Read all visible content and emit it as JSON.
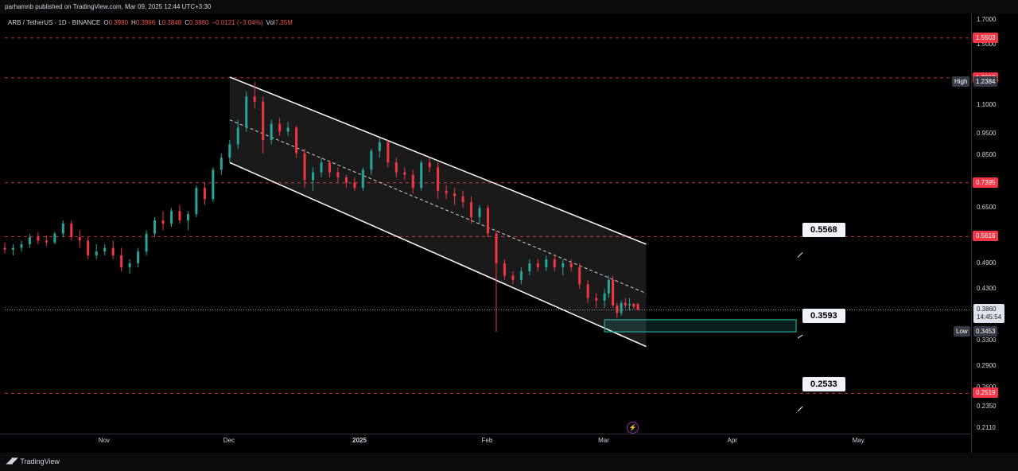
{
  "header": {
    "publisher": "parhamnb published on TradingView.com, Mar 09, 2025 12:44 UTC+3:30",
    "symbol": "ARB / TetherUS · 1D · BINANCE",
    "open_label": "O",
    "open": "0.3980",
    "high_label": "H",
    "high": "0.3996",
    "low_label": "L",
    "low": "0.3848",
    "close_label": "C",
    "close": "0.3860",
    "change": "−0.0121 (−3.04%)",
    "vol_label": "Vol",
    "vol": "7.35M"
  },
  "colors": {
    "up": "#26a69a",
    "down": "#f23645",
    "level_line": "#f23645",
    "channel": "#ffffff",
    "zone": "#26a69a"
  },
  "footer": {
    "brand": "TradingView",
    "logo_icon": "tradingview-logo-icon",
    "event_icon": "lightning-icon"
  },
  "chart_data": {
    "type": "candlestick",
    "scale": "log",
    "ylim": [
      0.205,
      1.75
    ],
    "y_ticks": [
      "1.7000",
      "1.5000",
      "1.2384",
      "1.1000",
      "0.9500",
      "0.8500",
      "0.6500",
      "0.4900",
      "0.4300",
      "0.3300",
      "0.2900",
      "0.2600",
      "0.2350",
      "0.2110"
    ],
    "x_ticks": [
      "Nov",
      "Dec",
      "2025",
      "Feb",
      "Mar",
      "Apr",
      "May"
    ],
    "x_tick_dates": [
      "2024-11-01",
      "2024-12-01",
      "2025-01-01",
      "2025-02-01",
      "2025-03-01",
      "2025-04-01",
      "2025-05-01"
    ],
    "xlim": [
      "2024-10-08",
      "2025-05-28"
    ],
    "levels": [
      {
        "value": 1.5503,
        "label": "1.5503"
      },
      {
        "value": 1.2653,
        "label": "1.2653"
      },
      {
        "value": 0.7395,
        "label": "0.7395"
      },
      {
        "value": 0.5616,
        "label": "0.5616"
      },
      {
        "value": 0.2519,
        "label": "0.2519"
      }
    ],
    "high_marker": {
      "label": "High",
      "value": "1.2384"
    },
    "low_marker": {
      "label": "Low",
      "value": "0.3453"
    },
    "last_price": {
      "value": "0.3860",
      "countdown": "14:45:54"
    },
    "callouts": [
      {
        "label": "0.5568",
        "value": 0.5568
      },
      {
        "label": "0.3593",
        "value": 0.3593
      },
      {
        "label": "0.2533",
        "value": 0.2533
      }
    ],
    "channel": {
      "start": "2024-12-01",
      "end": "2025-03-11",
      "upper": [
        1.27,
        0.54
      ],
      "mid": [
        1.02,
        0.42
      ],
      "lower": [
        0.82,
        0.32
      ]
    },
    "zone": {
      "start": "2025-03-01",
      "end": "2025-04-16",
      "top": 0.367,
      "bottom": 0.345
    },
    "candles": [
      {
        "d": "2024-10-08",
        "o": 0.53,
        "h": 0.545,
        "l": 0.515,
        "c": 0.525
      },
      {
        "d": "2024-10-10",
        "o": 0.525,
        "h": 0.54,
        "l": 0.51,
        "c": 0.53
      },
      {
        "d": "2024-10-12",
        "o": 0.53,
        "h": 0.55,
        "l": 0.52,
        "c": 0.54
      },
      {
        "d": "2024-10-14",
        "o": 0.54,
        "h": 0.57,
        "l": 0.53,
        "c": 0.56
      },
      {
        "d": "2024-10-16",
        "o": 0.56,
        "h": 0.575,
        "l": 0.54,
        "c": 0.55
      },
      {
        "d": "2024-10-18",
        "o": 0.55,
        "h": 0.565,
        "l": 0.535,
        "c": 0.545
      },
      {
        "d": "2024-10-20",
        "o": 0.545,
        "h": 0.575,
        "l": 0.54,
        "c": 0.57
      },
      {
        "d": "2024-10-22",
        "o": 0.57,
        "h": 0.61,
        "l": 0.56,
        "c": 0.6
      },
      {
        "d": "2024-10-24",
        "o": 0.6,
        "h": 0.61,
        "l": 0.55,
        "c": 0.56
      },
      {
        "d": "2024-10-26",
        "o": 0.56,
        "h": 0.58,
        "l": 0.53,
        "c": 0.55
      },
      {
        "d": "2024-10-28",
        "o": 0.55,
        "h": 0.56,
        "l": 0.5,
        "c": 0.51
      },
      {
        "d": "2024-10-30",
        "o": 0.51,
        "h": 0.54,
        "l": 0.5,
        "c": 0.52
      },
      {
        "d": "2024-11-01",
        "o": 0.52,
        "h": 0.54,
        "l": 0.51,
        "c": 0.53
      },
      {
        "d": "2024-11-03",
        "o": 0.53,
        "h": 0.55,
        "l": 0.5,
        "c": 0.51
      },
      {
        "d": "2024-11-05",
        "o": 0.51,
        "h": 0.53,
        "l": 0.47,
        "c": 0.48
      },
      {
        "d": "2024-11-07",
        "o": 0.48,
        "h": 0.5,
        "l": 0.465,
        "c": 0.49
      },
      {
        "d": "2024-11-09",
        "o": 0.49,
        "h": 0.53,
        "l": 0.48,
        "c": 0.52
      },
      {
        "d": "2024-11-11",
        "o": 0.52,
        "h": 0.58,
        "l": 0.51,
        "c": 0.57
      },
      {
        "d": "2024-11-13",
        "o": 0.57,
        "h": 0.62,
        "l": 0.56,
        "c": 0.61
      },
      {
        "d": "2024-11-15",
        "o": 0.61,
        "h": 0.64,
        "l": 0.58,
        "c": 0.6
      },
      {
        "d": "2024-11-17",
        "o": 0.6,
        "h": 0.65,
        "l": 0.59,
        "c": 0.64
      },
      {
        "d": "2024-11-19",
        "o": 0.64,
        "h": 0.66,
        "l": 0.6,
        "c": 0.61
      },
      {
        "d": "2024-11-21",
        "o": 0.61,
        "h": 0.64,
        "l": 0.58,
        "c": 0.63
      },
      {
        "d": "2024-11-23",
        "o": 0.63,
        "h": 0.73,
        "l": 0.62,
        "c": 0.72
      },
      {
        "d": "2024-11-25",
        "o": 0.72,
        "h": 0.74,
        "l": 0.66,
        "c": 0.68
      },
      {
        "d": "2024-11-27",
        "o": 0.68,
        "h": 0.8,
        "l": 0.67,
        "c": 0.79
      },
      {
        "d": "2024-11-29",
        "o": 0.79,
        "h": 0.86,
        "l": 0.77,
        "c": 0.84
      },
      {
        "d": "2024-12-01",
        "o": 0.84,
        "h": 0.92,
        "l": 0.82,
        "c": 0.9
      },
      {
        "d": "2024-12-03",
        "o": 0.9,
        "h": 1.02,
        "l": 0.88,
        "c": 0.98
      },
      {
        "d": "2024-12-05",
        "o": 0.98,
        "h": 1.18,
        "l": 0.96,
        "c": 1.15
      },
      {
        "d": "2024-12-07",
        "o": 1.15,
        "h": 1.24,
        "l": 1.08,
        "c": 1.12
      },
      {
        "d": "2024-12-09",
        "o": 1.12,
        "h": 1.15,
        "l": 0.86,
        "c": 0.92
      },
      {
        "d": "2024-12-11",
        "o": 0.92,
        "h": 1.02,
        "l": 0.9,
        "c": 1.0
      },
      {
        "d": "2024-12-13",
        "o": 1.0,
        "h": 1.03,
        "l": 0.94,
        "c": 0.96
      },
      {
        "d": "2024-12-15",
        "o": 0.96,
        "h": 1.01,
        "l": 0.94,
        "c": 0.98
      },
      {
        "d": "2024-12-17",
        "o": 0.98,
        "h": 0.99,
        "l": 0.84,
        "c": 0.86
      },
      {
        "d": "2024-12-19",
        "o": 0.86,
        "h": 0.88,
        "l": 0.72,
        "c": 0.75
      },
      {
        "d": "2024-12-21",
        "o": 0.75,
        "h": 0.8,
        "l": 0.71,
        "c": 0.78
      },
      {
        "d": "2024-12-23",
        "o": 0.78,
        "h": 0.84,
        "l": 0.76,
        "c": 0.82
      },
      {
        "d": "2024-12-25",
        "o": 0.82,
        "h": 0.83,
        "l": 0.76,
        "c": 0.78
      },
      {
        "d": "2024-12-27",
        "o": 0.78,
        "h": 0.8,
        "l": 0.74,
        "c": 0.76
      },
      {
        "d": "2024-12-29",
        "o": 0.76,
        "h": 0.77,
        "l": 0.72,
        "c": 0.74
      },
      {
        "d": "2024-12-31",
        "o": 0.74,
        "h": 0.76,
        "l": 0.71,
        "c": 0.72
      },
      {
        "d": "2025-01-02",
        "o": 0.72,
        "h": 0.8,
        "l": 0.71,
        "c": 0.79
      },
      {
        "d": "2025-01-04",
        "o": 0.79,
        "h": 0.88,
        "l": 0.77,
        "c": 0.87
      },
      {
        "d": "2025-01-06",
        "o": 0.87,
        "h": 0.93,
        "l": 0.84,
        "c": 0.91
      },
      {
        "d": "2025-01-08",
        "o": 0.91,
        "h": 0.92,
        "l": 0.8,
        "c": 0.82
      },
      {
        "d": "2025-01-10",
        "o": 0.82,
        "h": 0.84,
        "l": 0.76,
        "c": 0.78
      },
      {
        "d": "2025-01-12",
        "o": 0.78,
        "h": 0.8,
        "l": 0.75,
        "c": 0.77
      },
      {
        "d": "2025-01-14",
        "o": 0.77,
        "h": 0.79,
        "l": 0.7,
        "c": 0.72
      },
      {
        "d": "2025-01-16",
        "o": 0.72,
        "h": 0.83,
        "l": 0.71,
        "c": 0.82
      },
      {
        "d": "2025-01-18",
        "o": 0.82,
        "h": 0.84,
        "l": 0.78,
        "c": 0.8
      },
      {
        "d": "2025-01-20",
        "o": 0.8,
        "h": 0.82,
        "l": 0.68,
        "c": 0.71
      },
      {
        "d": "2025-01-22",
        "o": 0.71,
        "h": 0.73,
        "l": 0.68,
        "c": 0.7
      },
      {
        "d": "2025-01-24",
        "o": 0.7,
        "h": 0.72,
        "l": 0.66,
        "c": 0.69
      },
      {
        "d": "2025-01-26",
        "o": 0.69,
        "h": 0.71,
        "l": 0.65,
        "c": 0.67
      },
      {
        "d": "2025-01-28",
        "o": 0.67,
        "h": 0.69,
        "l": 0.6,
        "c": 0.62
      },
      {
        "d": "2025-01-30",
        "o": 0.62,
        "h": 0.66,
        "l": 0.6,
        "c": 0.65
      },
      {
        "d": "2025-02-01",
        "o": 0.65,
        "h": 0.66,
        "l": 0.56,
        "c": 0.57
      },
      {
        "d": "2025-02-03",
        "o": 0.57,
        "h": 0.58,
        "l": 0.345,
        "c": 0.49
      },
      {
        "d": "2025-02-05",
        "o": 0.49,
        "h": 0.5,
        "l": 0.45,
        "c": 0.46
      },
      {
        "d": "2025-02-07",
        "o": 0.46,
        "h": 0.47,
        "l": 0.44,
        "c": 0.45
      },
      {
        "d": "2025-02-09",
        "o": 0.45,
        "h": 0.48,
        "l": 0.44,
        "c": 0.47
      },
      {
        "d": "2025-02-11",
        "o": 0.47,
        "h": 0.5,
        "l": 0.46,
        "c": 0.49
      },
      {
        "d": "2025-02-13",
        "o": 0.49,
        "h": 0.5,
        "l": 0.47,
        "c": 0.48
      },
      {
        "d": "2025-02-15",
        "o": 0.48,
        "h": 0.51,
        "l": 0.47,
        "c": 0.5
      },
      {
        "d": "2025-02-17",
        "o": 0.5,
        "h": 0.51,
        "l": 0.47,
        "c": 0.48
      },
      {
        "d": "2025-02-19",
        "o": 0.48,
        "h": 0.5,
        "l": 0.46,
        "c": 0.49
      },
      {
        "d": "2025-02-21",
        "o": 0.49,
        "h": 0.5,
        "l": 0.47,
        "c": 0.48
      },
      {
        "d": "2025-02-23",
        "o": 0.48,
        "h": 0.49,
        "l": 0.43,
        "c": 0.44
      },
      {
        "d": "2025-02-25",
        "o": 0.44,
        "h": 0.45,
        "l": 0.4,
        "c": 0.41
      },
      {
        "d": "2025-02-27",
        "o": 0.41,
        "h": 0.42,
        "l": 0.39,
        "c": 0.405
      },
      {
        "d": "2025-03-01",
        "o": 0.405,
        "h": 0.43,
        "l": 0.39,
        "c": 0.42
      },
      {
        "d": "2025-03-02",
        "o": 0.42,
        "h": 0.46,
        "l": 0.41,
        "c": 0.45
      },
      {
        "d": "2025-03-03",
        "o": 0.45,
        "h": 0.46,
        "l": 0.39,
        "c": 0.395
      },
      {
        "d": "2025-03-04",
        "o": 0.395,
        "h": 0.4,
        "l": 0.37,
        "c": 0.38
      },
      {
        "d": "2025-03-05",
        "o": 0.38,
        "h": 0.405,
        "l": 0.375,
        "c": 0.4
      },
      {
        "d": "2025-03-06",
        "o": 0.4,
        "h": 0.41,
        "l": 0.39,
        "c": 0.395
      },
      {
        "d": "2025-03-07",
        "o": 0.395,
        "h": 0.41,
        "l": 0.385,
        "c": 0.398
      },
      {
        "d": "2025-03-08",
        "o": 0.398,
        "h": 0.4,
        "l": 0.388,
        "c": 0.392
      },
      {
        "d": "2025-03-09",
        "o": 0.398,
        "h": 0.3996,
        "l": 0.3848,
        "c": 0.386
      }
    ]
  }
}
